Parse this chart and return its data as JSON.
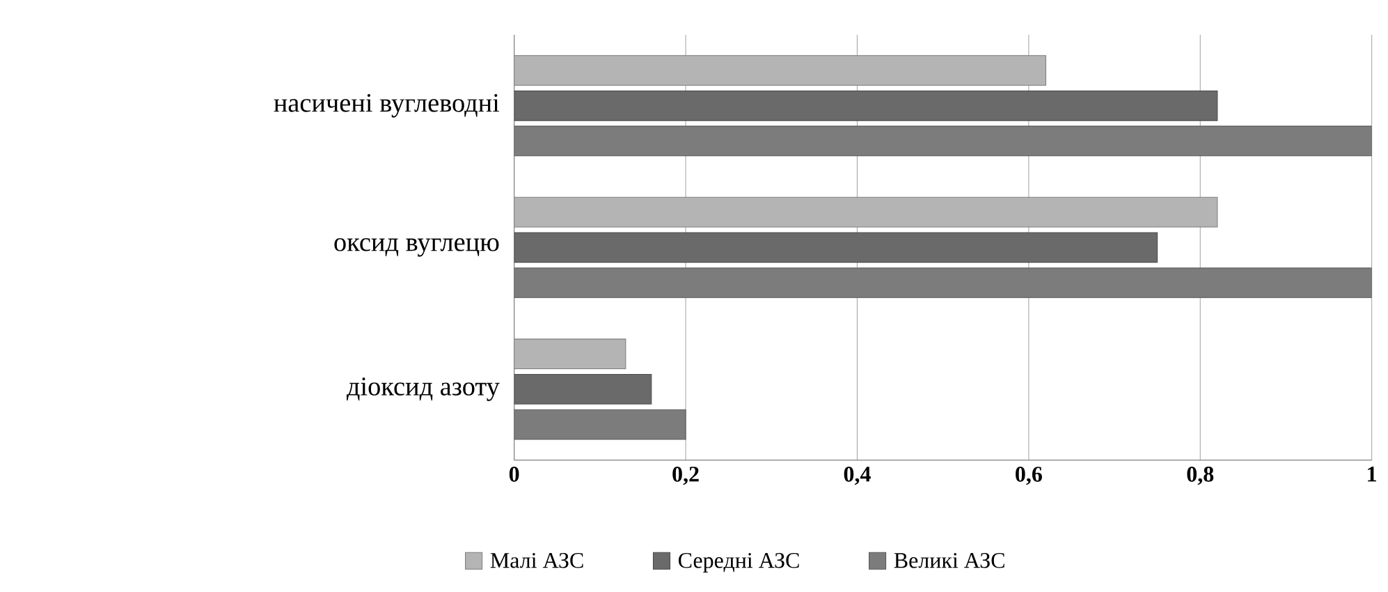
{
  "chart_data": {
    "type": "bar",
    "orientation": "horizontal",
    "categories": [
      "насичені вуглеводні",
      "оксид вуглецю",
      "діоксид азоту"
    ],
    "series": [
      {
        "name": "Малі АЗС",
        "color": "#b4b4b4",
        "values": [
          0.62,
          0.82,
          0.13
        ]
      },
      {
        "name": "Середні АЗС",
        "color": "#6a6a6a",
        "values": [
          0.82,
          0.75,
          0.16
        ]
      },
      {
        "name": "Великі АЗС",
        "color": "#7c7c7c",
        "values": [
          1.0,
          1.0,
          0.2
        ]
      }
    ],
    "xlim": [
      0,
      1
    ],
    "xticks": [
      0,
      {
        "value": 0.2,
        "label": "0,2"
      },
      {
        "value": 0.4,
        "label": "0,4"
      },
      {
        "value": 0.6,
        "label": "0,6"
      },
      {
        "value": 0.8,
        "label": "0,8"
      },
      1
    ],
    "grid": "x",
    "legend": "bottom"
  }
}
